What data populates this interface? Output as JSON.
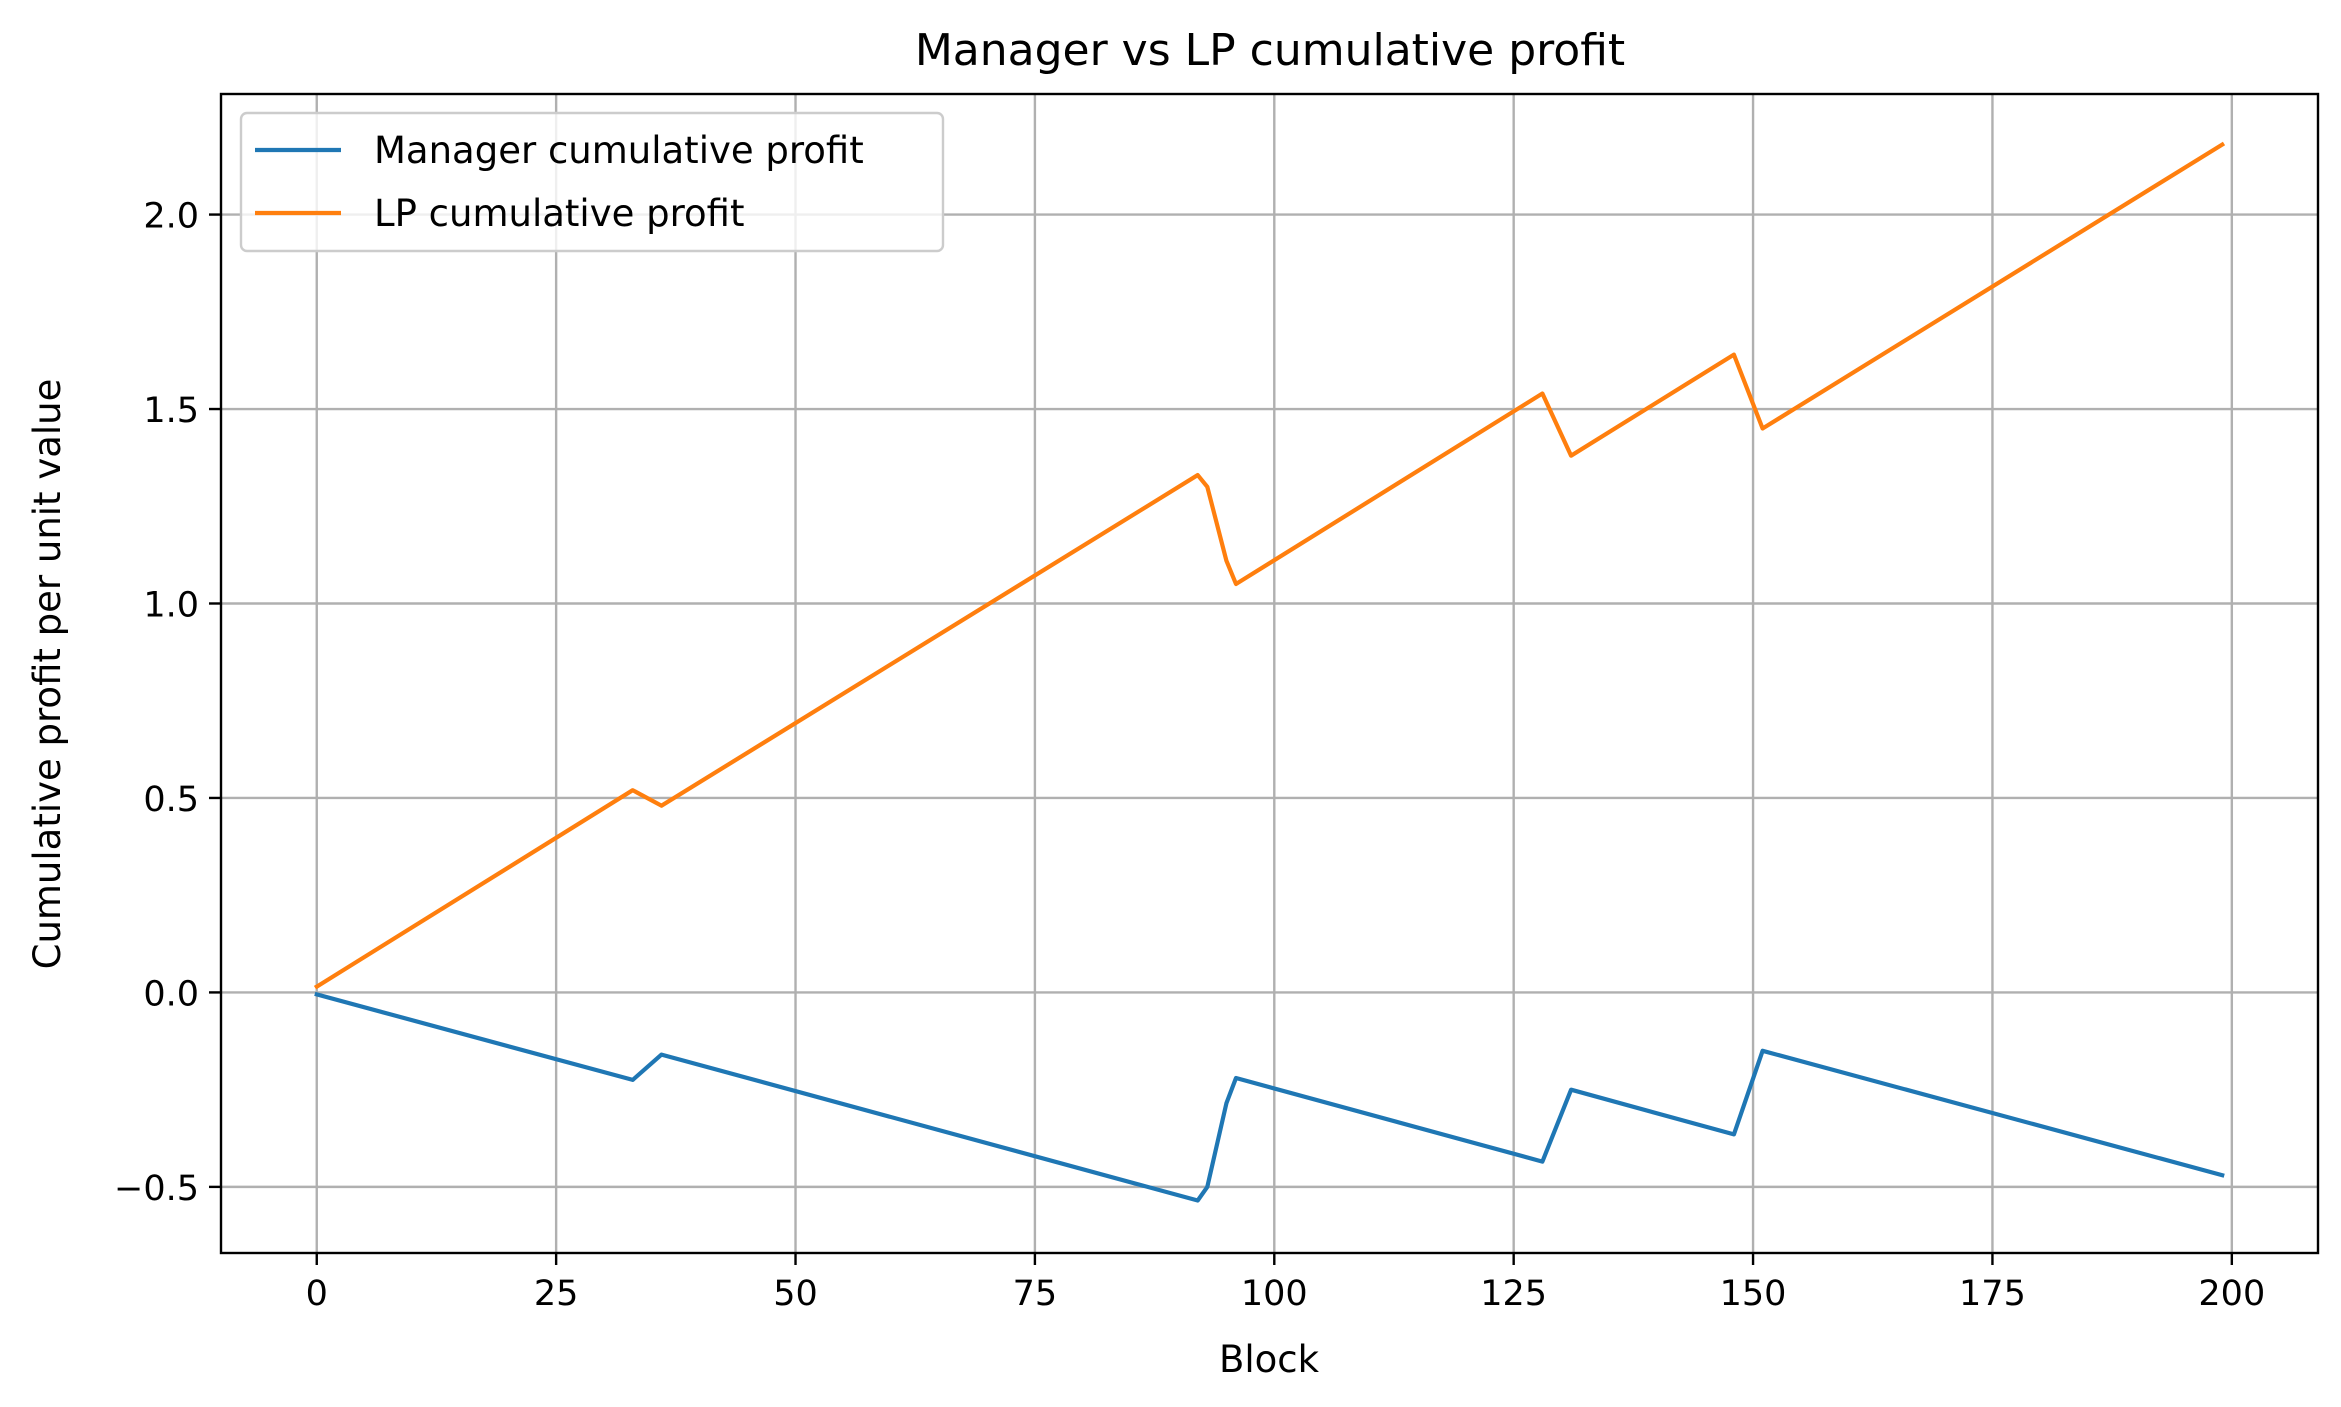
{
  "chart_data": {
    "type": "line",
    "title": "Manager vs LP cumulative profit",
    "xlabel": "Block",
    "ylabel": "Cumulative profit per unit value",
    "xlim": [
      -10,
      209
    ],
    "ylim": [
      -0.67,
      2.31
    ],
    "xticks": [
      0,
      25,
      50,
      75,
      100,
      125,
      150,
      175,
      200
    ],
    "yticks": [
      -0.5,
      0.0,
      0.5,
      1.0,
      1.5,
      2.0
    ],
    "xtick_labels": [
      "0",
      "25",
      "50",
      "75",
      "100",
      "125",
      "150",
      "175",
      "200"
    ],
    "ytick_labels": [
      "−0.5",
      "0.0",
      "0.5",
      "1.0",
      "1.5",
      "2.0"
    ],
    "grid": true,
    "legend_position": "upper left",
    "series": [
      {
        "name": "Manager cumulative profit",
        "color": "#1f77b4",
        "points": [
          [
            0,
            -0.005
          ],
          [
            33,
            -0.225
          ],
          [
            36,
            -0.16
          ],
          [
            92,
            -0.535
          ],
          [
            93,
            -0.5
          ],
          [
            95,
            -0.285
          ],
          [
            96,
            -0.22
          ],
          [
            128,
            -0.435
          ],
          [
            131,
            -0.25
          ],
          [
            148,
            -0.365
          ],
          [
            151,
            -0.15
          ],
          [
            199,
            -0.47
          ]
        ]
      },
      {
        "name": "LP cumulative profit",
        "color": "#ff7f0e",
        "points": [
          [
            0,
            0.015
          ],
          [
            33,
            0.52
          ],
          [
            36,
            0.48
          ],
          [
            92,
            1.33
          ],
          [
            93,
            1.3
          ],
          [
            95,
            1.11
          ],
          [
            96,
            1.05
          ],
          [
            128,
            1.54
          ],
          [
            131,
            1.38
          ],
          [
            148,
            1.64
          ],
          [
            151,
            1.45
          ],
          [
            199,
            2.18
          ]
        ]
      }
    ]
  }
}
